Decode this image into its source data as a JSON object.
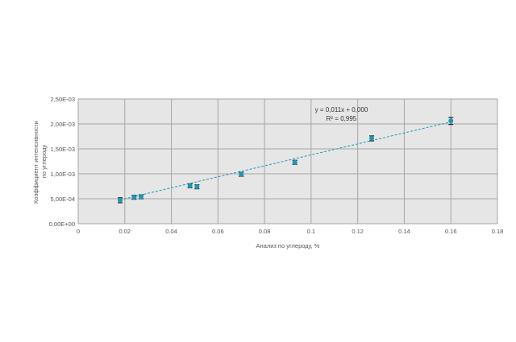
{
  "chart_data": {
    "type": "scatter",
    "title": "",
    "xlabel": "Анализ по углероду, %",
    "ylabel_lines": [
      "Коэффициент интенсивности",
      "по углероду"
    ],
    "xlim": [
      0,
      0.18
    ],
    "ylim": [
      0,
      0.0025
    ],
    "x_ticks": [
      0,
      0.02,
      0.04,
      0.06,
      0.08,
      0.1,
      0.12,
      0.14,
      0.16,
      0.18
    ],
    "x_tick_labels": [
      "0",
      "0.02",
      "0.04",
      "0.06",
      "0.08",
      "0.1",
      "0.12",
      "0.14",
      "0.16",
      "0.18"
    ],
    "y_ticks": [
      0,
      0.0005,
      0.001,
      0.0015,
      0.002,
      0.0025
    ],
    "y_tick_labels": [
      "0,00E+00",
      "5,00E-04",
      "1,00E-03",
      "1,50E-03",
      "2,00E-03",
      "2,50E-03"
    ],
    "grid": true,
    "legend": "none",
    "series": [
      {
        "x": [
          0.018,
          0.024,
          0.027,
          0.048,
          0.051,
          0.07,
          0.093,
          0.126,
          0.16
        ],
        "y": [
          0.00047,
          0.00053,
          0.00054,
          0.00076,
          0.00074,
          0.00099,
          0.00123,
          0.00171,
          0.00206
        ],
        "error": [
          5e-05,
          4e-05,
          4e-05,
          4e-05,
          4e-05,
          4e-05,
          4e-05,
          5e-05,
          7e-05
        ],
        "marker_color": "#1f97b4",
        "error_color": "#222222"
      }
    ],
    "trendline": {
      "x_range": [
        0.018,
        0.16
      ],
      "slope": 0.011,
      "intercept": 0.00028,
      "color": "#1f97b4",
      "style": "dashed",
      "equation": "y = 0,011x + 0,000",
      "r2_label": "R² = 0,995"
    },
    "colors": {
      "plot_background": "#e6e6e6",
      "grid": "#a6a6a6",
      "text": "#555555"
    }
  }
}
